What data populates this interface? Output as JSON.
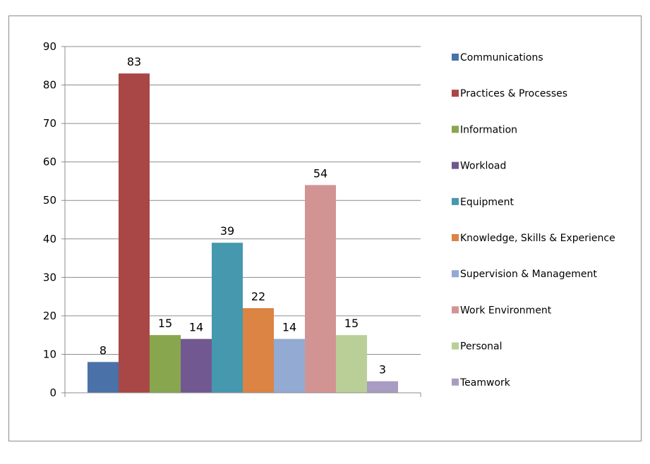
{
  "chart_data": {
    "type": "bar",
    "title": "",
    "xlabel": "",
    "ylabel": "",
    "ylim": [
      0,
      90
    ],
    "yticks": [
      0,
      10,
      20,
      30,
      40,
      50,
      60,
      70,
      80,
      90
    ],
    "grid": true,
    "legend_position": "right",
    "data_labels": true,
    "series": [
      {
        "name": "Communications",
        "value": 8,
        "color": "#4a72a8"
      },
      {
        "name": "Practices & Processes",
        "value": 83,
        "color": "#a84745"
      },
      {
        "name": "Information",
        "value": 15,
        "color": "#88a64d"
      },
      {
        "name": "Workload",
        "value": 14,
        "color": "#725890"
      },
      {
        "name": "Equipment",
        "value": 39,
        "color": "#4598ae"
      },
      {
        "name": "Knowledge, Skills & Experience",
        "value": 22,
        "color": "#db8443"
      },
      {
        "name": "Supervision & Management",
        "value": 14,
        "color": "#93aad3"
      },
      {
        "name": "Work Environment",
        "value": 54,
        "color": "#d29493"
      },
      {
        "name": "Personal",
        "value": 15,
        "color": "#bacf98"
      },
      {
        "name": "Teamwork",
        "value": 3,
        "color": "#a89cc2"
      }
    ]
  }
}
